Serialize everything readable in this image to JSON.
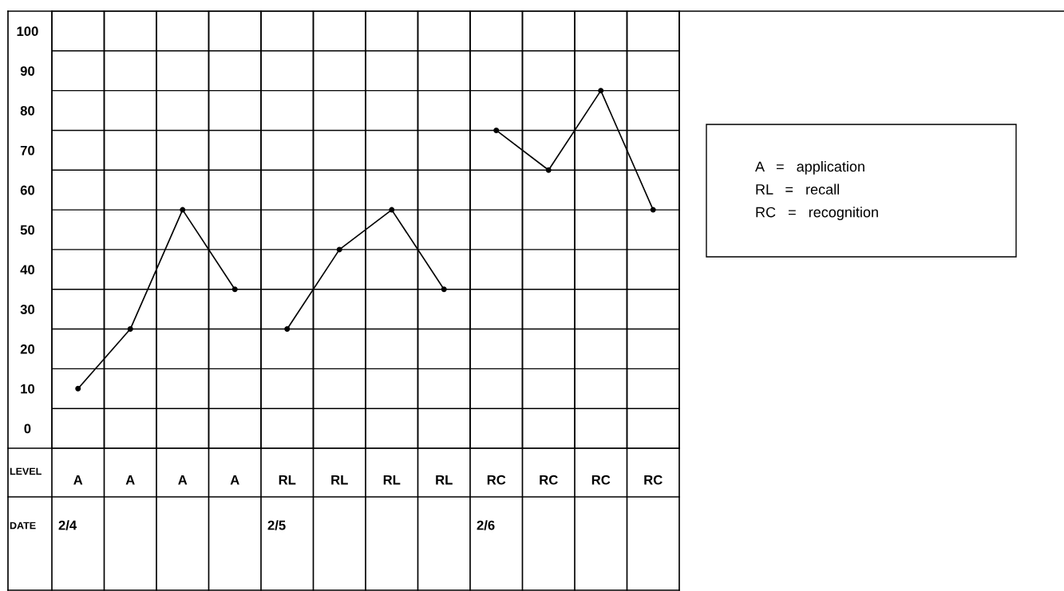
{
  "chart_data": {
    "type": "line",
    "categories": [
      "A",
      "A",
      "A",
      "A",
      "RL",
      "RL",
      "RL",
      "RL",
      "RC",
      "RC",
      "RC",
      "RC"
    ],
    "series": [
      {
        "color": "#000000",
        "values": [
          10,
          25,
          55,
          35,
          null,
          null,
          null,
          null,
          null,
          null,
          null,
          null
        ]
      },
      {
        "color": "#000000",
        "values": [
          null,
          null,
          null,
          null,
          25,
          45,
          55,
          35,
          null,
          null,
          null,
          null
        ]
      },
      {
        "color": "#000000",
        "values": [
          null,
          null,
          null,
          null,
          null,
          null,
          null,
          null,
          75,
          65,
          85,
          55
        ]
      }
    ],
    "ylim": [
      -5,
      105
    ],
    "yticks": [
      0,
      10,
      20,
      30,
      40,
      50,
      60,
      70,
      80,
      90,
      100
    ],
    "xlabel": "LEVEL",
    "annotations": [
      "DATE",
      "2/4",
      "2/5",
      "2/6",
      "A   =   application\nRL   =   recall\nRC   =   recognition"
    ],
    "grid": true,
    "marker": "circle"
  }
}
